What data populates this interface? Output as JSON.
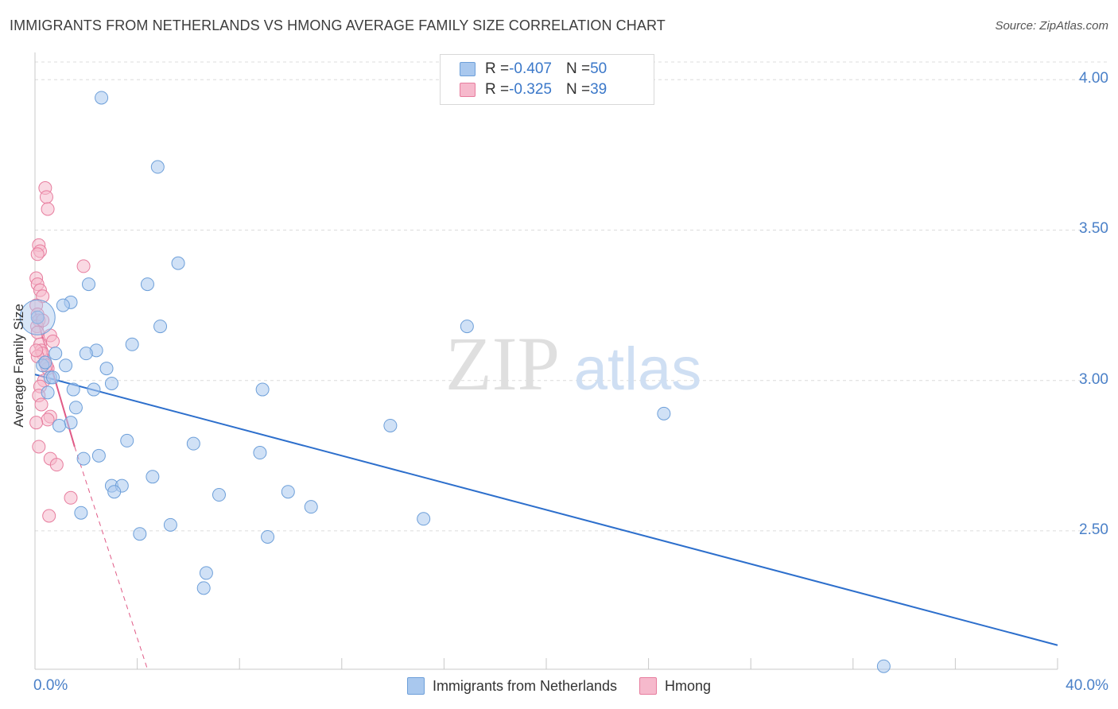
{
  "title": "IMMIGRANTS FROM NETHERLANDS VS HMONG AVERAGE FAMILY SIZE CORRELATION CHART",
  "source": "Source: ZipAtlas.com",
  "watermark": {
    "zip": "ZIP",
    "atlas": "atlas"
  },
  "colors": {
    "blue": "#a9c8ee",
    "blue_stroke": "#6d9fd9",
    "blue_line": "#2d6fcc",
    "pink": "#f6b9cc",
    "pink_stroke": "#e77d9e",
    "pink_line": "#e05a86",
    "tick": "#4a80c8",
    "grid": "#dcdcdc"
  },
  "legend": {
    "rows": [
      {
        "r_label": "R = ",
        "r_value": "-0.407",
        "n_label": "N = ",
        "n_value": "50"
      },
      {
        "r_label": "R = ",
        "r_value": "-0.325",
        "n_label": "N = ",
        "n_value": "39"
      }
    ]
  },
  "chart_data": {
    "type": "scatter",
    "xlabel": "",
    "ylabel": "Average Family Size",
    "xlim": [
      0,
      40
    ],
    "ylim": [
      2.04,
      4.08
    ],
    "x_tick_labels": [
      "0.0%",
      "40.0%"
    ],
    "y_ticks": [
      2.5,
      3.0,
      3.5,
      4.0
    ],
    "y_tick_labels": [
      "2.50",
      "3.00",
      "3.50",
      "4.00"
    ],
    "grid": true,
    "legend_position": "bottom",
    "series": [
      {
        "name": "Immigrants from Netherlands",
        "r": -0.407,
        "n": 50,
        "trend": {
          "x0": 0.0,
          "y0": 3.02,
          "x1": 40.0,
          "y1": 2.12
        },
        "points": [
          [
            2.6,
            3.94
          ],
          [
            4.8,
            3.71
          ],
          [
            5.6,
            3.39
          ],
          [
            2.1,
            3.32
          ],
          [
            4.4,
            3.32
          ],
          [
            1.4,
            3.26
          ],
          [
            1.1,
            3.25
          ],
          [
            4.9,
            3.18
          ],
          [
            16.9,
            3.18
          ],
          [
            3.8,
            3.12
          ],
          [
            2.4,
            3.1
          ],
          [
            0.8,
            3.09
          ],
          [
            2.0,
            3.09
          ],
          [
            0.3,
            3.05
          ],
          [
            1.2,
            3.05
          ],
          [
            2.8,
            3.04
          ],
          [
            0.6,
            3.01
          ],
          [
            0.7,
            3.01
          ],
          [
            3.0,
            2.99
          ],
          [
            1.5,
            2.97
          ],
          [
            2.3,
            2.97
          ],
          [
            8.9,
            2.97
          ],
          [
            0.5,
            2.96
          ],
          [
            1.6,
            2.91
          ],
          [
            24.6,
            2.89
          ],
          [
            1.4,
            2.86
          ],
          [
            0.95,
            2.85
          ],
          [
            13.9,
            2.85
          ],
          [
            3.6,
            2.8
          ],
          [
            6.2,
            2.79
          ],
          [
            8.8,
            2.76
          ],
          [
            2.5,
            2.75
          ],
          [
            1.9,
            2.74
          ],
          [
            4.6,
            2.68
          ],
          [
            3.0,
            2.65
          ],
          [
            3.4,
            2.65
          ],
          [
            3.1,
            2.63
          ],
          [
            9.9,
            2.63
          ],
          [
            7.2,
            2.62
          ],
          [
            10.8,
            2.58
          ],
          [
            1.8,
            2.56
          ],
          [
            15.2,
            2.54
          ],
          [
            5.3,
            2.52
          ],
          [
            4.1,
            2.49
          ],
          [
            9.1,
            2.48
          ],
          [
            6.7,
            2.36
          ],
          [
            6.6,
            2.31
          ],
          [
            33.2,
            2.05
          ],
          [
            0.1,
            3.21
          ],
          [
            0.4,
            3.06
          ]
        ]
      },
      {
        "name": "Hmong",
        "r": -0.325,
        "n": 39,
        "trend": {
          "x0": 0.0,
          "y0": 3.23,
          "x1": 1.55,
          "y1": 2.78,
          "dash_x1": 4.4,
          "dash_y1": 2.04
        },
        "points": [
          [
            0.4,
            3.64
          ],
          [
            0.45,
            3.61
          ],
          [
            0.5,
            3.57
          ],
          [
            0.15,
            3.45
          ],
          [
            0.2,
            3.43
          ],
          [
            0.1,
            3.42
          ],
          [
            1.9,
            3.38
          ],
          [
            0.05,
            3.34
          ],
          [
            0.1,
            3.32
          ],
          [
            0.2,
            3.3
          ],
          [
            0.3,
            3.28
          ],
          [
            0.05,
            3.25
          ],
          [
            0.1,
            3.22
          ],
          [
            0.15,
            3.2
          ],
          [
            0.08,
            3.18
          ],
          [
            0.1,
            3.16
          ],
          [
            0.6,
            3.15
          ],
          [
            0.7,
            3.13
          ],
          [
            0.2,
            3.12
          ],
          [
            0.25,
            3.1
          ],
          [
            0.3,
            3.09
          ],
          [
            0.1,
            3.08
          ],
          [
            0.4,
            3.06
          ],
          [
            0.5,
            3.04
          ],
          [
            0.35,
            3.0
          ],
          [
            0.2,
            2.98
          ],
          [
            0.15,
            2.95
          ],
          [
            0.6,
            2.88
          ],
          [
            0.5,
            2.87
          ],
          [
            0.05,
            2.86
          ],
          [
            0.15,
            2.78
          ],
          [
            0.6,
            2.74
          ],
          [
            0.85,
            2.72
          ],
          [
            1.4,
            2.61
          ],
          [
            0.55,
            2.55
          ],
          [
            0.3,
            3.2
          ],
          [
            0.45,
            3.05
          ],
          [
            0.25,
            2.92
          ],
          [
            0.05,
            3.1
          ]
        ]
      }
    ]
  }
}
